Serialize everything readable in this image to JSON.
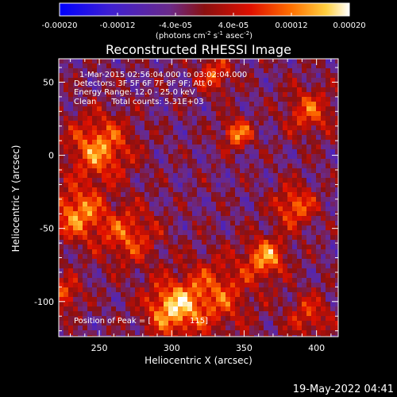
{
  "colorbar": {
    "tick_labels": [
      "-0.00020",
      "-0.00012",
      "-4.0e-05",
      "4.0e-05",
      "0.00012",
      "0.00020"
    ],
    "min": -0.0002,
    "max": 0.0002,
    "unit_label_parts": [
      "(photons cm",
      "-2",
      " s",
      "-1",
      " asec",
      "-2",
      ")"
    ]
  },
  "chart_data": {
    "type": "heatmap",
    "title": "Reconstructed RHESSI Image",
    "xlabel": "Heliocentric X (arcsec)",
    "ylabel": "Heliocentric Y (arcsec)",
    "xlim": [
      222,
      415
    ],
    "ylim": [
      -124,
      66
    ],
    "x_ticks": [
      "250",
      "300",
      "350",
      "400"
    ],
    "x_tick_values": [
      250,
      300,
      350,
      400
    ],
    "y_ticks": [
      "50",
      "0",
      "-50",
      "-100"
    ],
    "y_tick_values": [
      50,
      0,
      -50,
      -100
    ],
    "annotations": [
      "1-Mar-2015 02:56:04.000 to 03:02:04.000",
      "Detectors: 3F 5F 6F 7F 8F 9F; Att 0",
      "Energy Range: 12.0 - 25.0 keV",
      "Clean      Total counts: 5.31E+03"
    ],
    "peak_label": "Position of Peak = [",
    "peak_value_tail": "115]",
    "colormap": "red-temperature (blue-purple-red-orange-yellow-white)",
    "grid": false
  },
  "footer": {
    "timestamp": "19-May-2022 04:41"
  }
}
